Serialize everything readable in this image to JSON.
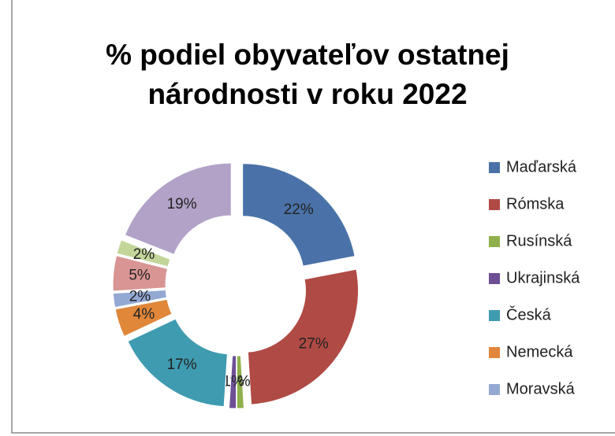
{
  "chart_data": {
    "type": "donut",
    "title_lines": [
      "% podiel obyvateľov ostatnej",
      "národnosti v roku 2022"
    ],
    "categories": [
      "Maďarská",
      "Rómska",
      "Rusínská",
      "Ukrajinská",
      "Česká",
      "Nemecká",
      "Moravská",
      null,
      null,
      null
    ],
    "values": [
      22,
      27,
      1,
      1,
      17,
      4,
      2,
      5,
      2,
      19
    ],
    "value_labels": [
      "22%",
      "27%",
      "1%",
      "1%",
      "17%",
      "4%",
      "2%",
      "5%",
      "2%",
      "19%"
    ],
    "colors": [
      "#4a72a8",
      "#b04a45",
      "#8fb04a",
      "#6e4f96",
      "#3f9bb0",
      "#e0873a",
      "#93a9d4",
      "#d99594",
      "#c2d69a",
      "#b2a2c7"
    ],
    "legend": "right"
  }
}
